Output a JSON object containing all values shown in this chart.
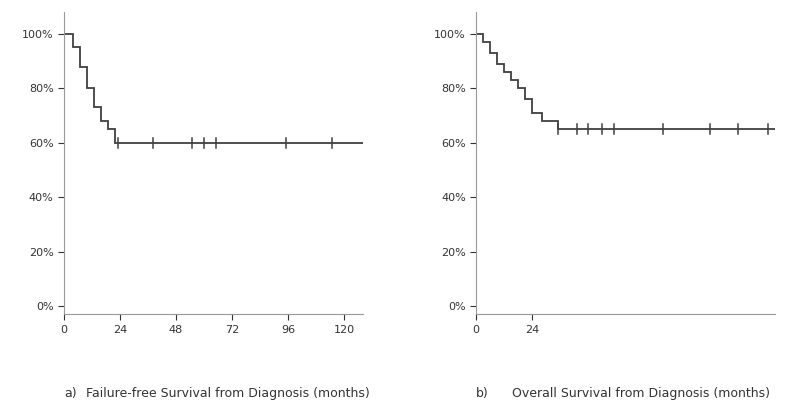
{
  "panel_a": {
    "label": "a)",
    "xlabel": "Failure-free Survival from Diagnosis (months)",
    "xlim": [
      0,
      128
    ],
    "ylim": [
      -0.03,
      1.08
    ],
    "xticks": [
      0,
      24,
      48,
      72,
      96,
      120
    ],
    "yticks": [
      0.0,
      0.2,
      0.4,
      0.6,
      0.8,
      1.0
    ],
    "km_x": [
      0,
      4,
      7,
      10,
      13,
      16,
      19,
      22,
      128
    ],
    "km_y": [
      1.0,
      0.95,
      0.88,
      0.8,
      0.73,
      0.68,
      0.65,
      0.6,
      0.6
    ],
    "censor_times": [
      23,
      38,
      55,
      60,
      65,
      95,
      115
    ],
    "censor_surv": [
      0.6,
      0.6,
      0.6,
      0.6,
      0.6,
      0.6,
      0.6
    ]
  },
  "panel_b": {
    "label": "b)",
    "xlabel": "Overall Survival from Diagnosis (months)",
    "xlim": [
      0,
      128
    ],
    "ylim": [
      -0.03,
      1.08
    ],
    "xticks": [
      0,
      24
    ],
    "yticks": [
      0.0,
      0.2,
      0.4,
      0.6,
      0.8,
      1.0
    ],
    "km_x": [
      0,
      3,
      6,
      9,
      12,
      15,
      18,
      21,
      24,
      28,
      35,
      128
    ],
    "km_y": [
      1.0,
      0.97,
      0.93,
      0.89,
      0.86,
      0.83,
      0.8,
      0.76,
      0.71,
      0.68,
      0.65,
      0.65
    ],
    "censor_times": [
      35,
      43,
      48,
      54,
      59,
      80,
      100,
      112,
      125
    ],
    "censor_surv": [
      0.65,
      0.65,
      0.65,
      0.65,
      0.65,
      0.65,
      0.65,
      0.65,
      0.65
    ]
  },
  "line_color": "#404040",
  "bg_color": "#ffffff",
  "spine_color": "#999999",
  "tick_label_size": 8,
  "fig_width": 7.99,
  "fig_height": 4.03,
  "dpi": 100
}
